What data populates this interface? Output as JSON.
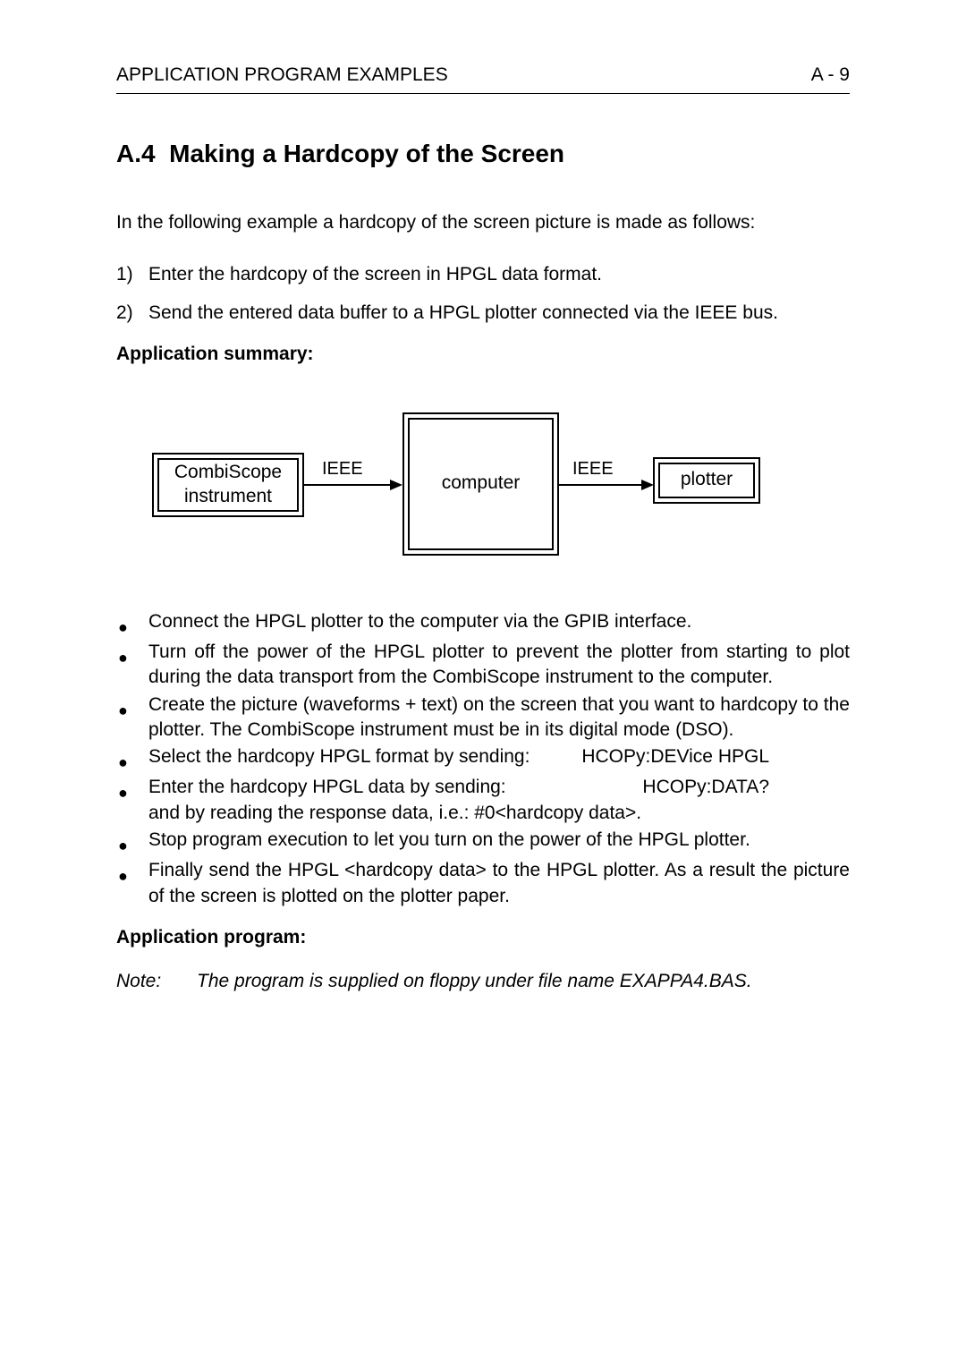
{
  "header": {
    "left": "APPLICATION PROGRAM EXAMPLES",
    "right": "A - 9"
  },
  "section": {
    "num": "A.4",
    "title": "Making a Hardcopy of the Screen"
  },
  "intro": "In the following example a hardcopy of the screen picture is made as follows:",
  "steps": [
    {
      "n": "1)",
      "t": "Enter the hardcopy of the screen in HPGL data format."
    },
    {
      "n": "2)",
      "t": "Send the entered data buffer to a HPGL plotter connected via the IEEE bus."
    }
  ],
  "summary_head": "Application summary:",
  "diagram": {
    "box1_l1": "CombiScope",
    "box1_l2": "instrument",
    "edge1": "IEEE",
    "box2": "computer",
    "edge2": "IEEE",
    "box3": "plotter"
  },
  "bullets": [
    "Connect the HPGL plotter to the computer via the GPIB interface.",
    "Turn off the power of the HPGL plotter to prevent the plotter from starting to plot during the data transport from the CombiScope instrument to the computer.",
    "Create the picture (waveforms + text) on the screen that you want to hardcopy to the plotter. The CombiScope instrument must be in its digital mode (DSO)."
  ],
  "bullet_cmd1": {
    "left": "Select the hardcopy HPGL format by sending:",
    "cmd": "HCOPy:DEVice HPGL"
  },
  "bullet_cmd2": {
    "left": "Enter the hardcopy HPGL data by sending:",
    "cmd": "HCOPy:DATA?",
    "cont": "and by reading the response data, i.e.: #0<hardcopy data>."
  },
  "bullets2": [
    "Stop program execution to let you turn on the power of the HPGL plotter.",
    "Finally send the HPGL <hardcopy data> to the HPGL plotter. As a result the picture of the screen is plotted on the plotter paper."
  ],
  "program_head": "Application program:",
  "note": {
    "label": "Note:",
    "text": "The program is supplied on floppy under file name EXAPPA4.BAS."
  }
}
